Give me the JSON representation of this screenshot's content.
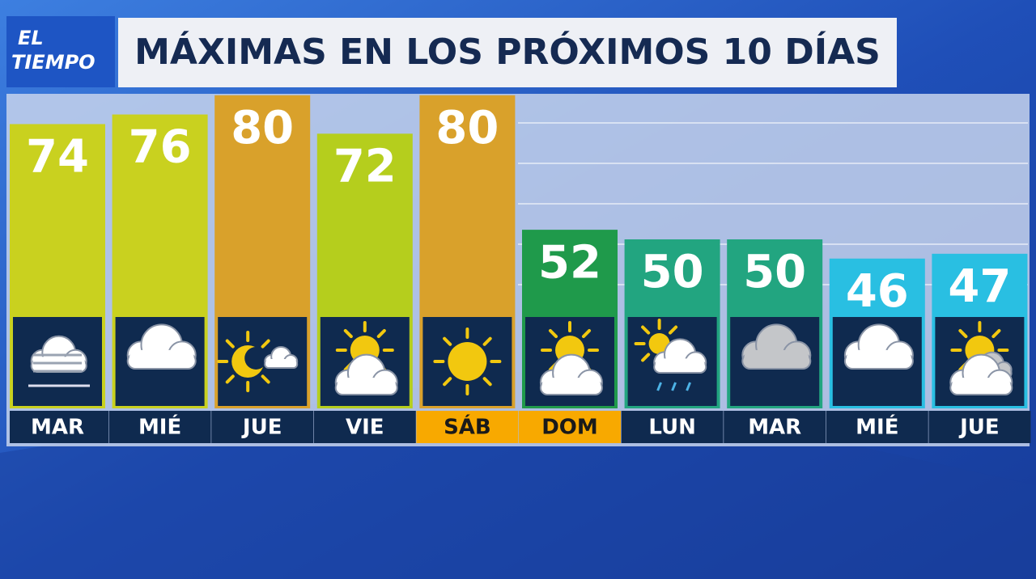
{
  "logo": {
    "line1": "EL",
    "line2": "TIEMPO"
  },
  "chart_data": {
    "type": "bar",
    "title": "MÁXIMAS EN LOS PRÓXIMOS 10 DÍAS",
    "categories": [
      "MAR",
      "MIÉ",
      "JUE",
      "VIE",
      "SÁB",
      "DOM",
      "LUN",
      "MAR",
      "MIÉ",
      "JUE"
    ],
    "values": [
      74,
      76,
      80,
      72,
      80,
      52,
      50,
      50,
      46,
      47
    ],
    "colors": [
      "#c9d11f",
      "#c9d11f",
      "#d9a12b",
      "#b5ce1d",
      "#d9a12b",
      "#1f9a4b",
      "#22a580",
      "#22a580",
      "#29bfe2",
      "#29bfe2"
    ]
  }
}
